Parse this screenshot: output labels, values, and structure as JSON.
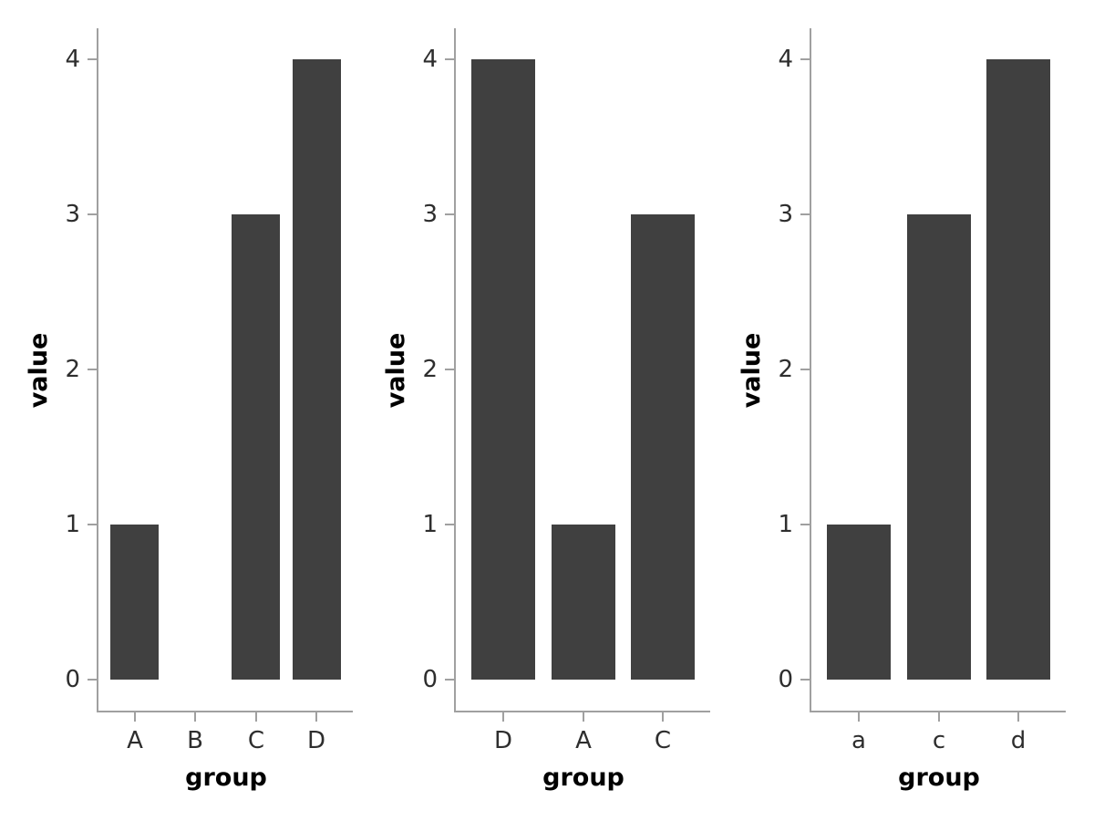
{
  "figure": {
    "description_title": "",
    "background": "#ffffff"
  },
  "colors": {
    "bar": "#404040",
    "spine": "#a0a0a0",
    "tick_text": "#2e2e2e",
    "axis_title_text": "#000000",
    "background": "#ffffff"
  },
  "chart_data": [
    {
      "type": "bar",
      "title": "",
      "categories": [
        "A",
        "B",
        "C",
        "D"
      ],
      "values": [
        1,
        0,
        3,
        4
      ],
      "xlabel": "group",
      "ylabel": "value",
      "yticks": [
        0,
        1,
        2,
        3,
        4
      ],
      "ylim": [
        0,
        4
      ],
      "grid": false,
      "legend": "none",
      "bar_color": "#404040"
    },
    {
      "type": "bar",
      "title": "",
      "categories": [
        "D",
        "A",
        "C"
      ],
      "values": [
        4,
        1,
        3
      ],
      "xlabel": "group",
      "ylabel": "value",
      "yticks": [
        0,
        1,
        2,
        3,
        4
      ],
      "ylim": [
        0,
        4
      ],
      "grid": false,
      "legend": "none",
      "bar_color": "#404040"
    },
    {
      "type": "bar",
      "title": "",
      "categories": [
        "a",
        "c",
        "d"
      ],
      "values": [
        1,
        3,
        4
      ],
      "xlabel": "group",
      "ylabel": "value",
      "yticks": [
        0,
        1,
        2,
        3,
        4
      ],
      "ylim": [
        0,
        4
      ],
      "grid": false,
      "legend": "none",
      "bar_color": "#404040"
    }
  ]
}
